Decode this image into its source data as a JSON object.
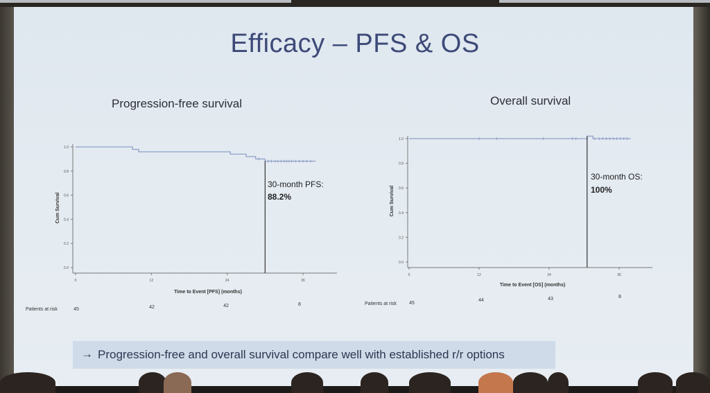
{
  "slide": {
    "title": "Efficacy – PFS & OS",
    "footer_arrow": "→",
    "footer_text": "Progression-free and overall survival compare well with established r/r options"
  },
  "pfs_panel": {
    "heading": "Progression-free survival",
    "annotation_label": "30-month PFS:",
    "annotation_value": "88.2%",
    "risk_label": "Patients at risk",
    "risk_counts": [
      "45",
      "42",
      "42",
      "8"
    ]
  },
  "os_panel": {
    "heading": "Overall survival",
    "annotation_label": "30-month OS:",
    "annotation_value": "100%",
    "risk_label": "Patients at risk",
    "risk_counts": [
      "45",
      "44",
      "43",
      "8"
    ]
  },
  "chart_data": [
    {
      "type": "line",
      "ylabel": "Cum Survival",
      "xlabel": "Time to Event [PFS] (months)",
      "x_ticks": [
        "0",
        "12",
        "24",
        "36"
      ],
      "y_ticks": [
        "0.0",
        "0.2",
        "0.4",
        "0.6",
        "0.8",
        "1.0"
      ],
      "xlim": [
        0,
        42
      ],
      "ylim": [
        0,
        1
      ],
      "series": [
        {
          "x": [
            0,
            9,
            9,
            10,
            10,
            24.5,
            24.5,
            27,
            27,
            28.5,
            28.5,
            30,
            30,
            38
          ],
          "y": [
            1.0,
            1.0,
            0.98,
            0.98,
            0.96,
            0.96,
            0.94,
            0.94,
            0.92,
            0.92,
            0.9,
            0.9,
            0.882,
            0.882
          ]
        }
      ],
      "reference_line_x": 30,
      "censor_x": [
        29,
        30.5,
        31,
        31.6,
        32,
        32.5,
        33,
        33.4,
        33.8,
        34.2,
        34.8,
        35.4,
        36,
        36.6,
        37.2
      ]
    },
    {
      "type": "line",
      "ylabel": "Cum Survival",
      "xlabel": "Time to Event [OS] (months)",
      "x_ticks": [
        "0",
        "12",
        "24",
        "36"
      ],
      "y_ticks": [
        "0.0",
        "0.2",
        "0.4",
        "0.6",
        "0.8",
        "1.0"
      ],
      "xlim": [
        0,
        42
      ],
      "ylim": [
        0,
        1
      ],
      "series": [
        {
          "x": [
            0,
            30.5,
            30.5,
            31.5,
            31.5,
            38
          ],
          "y": [
            1.0,
            1.0,
            1.02,
            1.02,
            1.0,
            1.0
          ]
        }
      ],
      "reference_line_x": 30.5,
      "censor_x": [
        12,
        15,
        23,
        28,
        28.6,
        31.8,
        32.6,
        33.2,
        33.8,
        34.4,
        35,
        35.6,
        36.2,
        36.8,
        37.4
      ]
    }
  ]
}
